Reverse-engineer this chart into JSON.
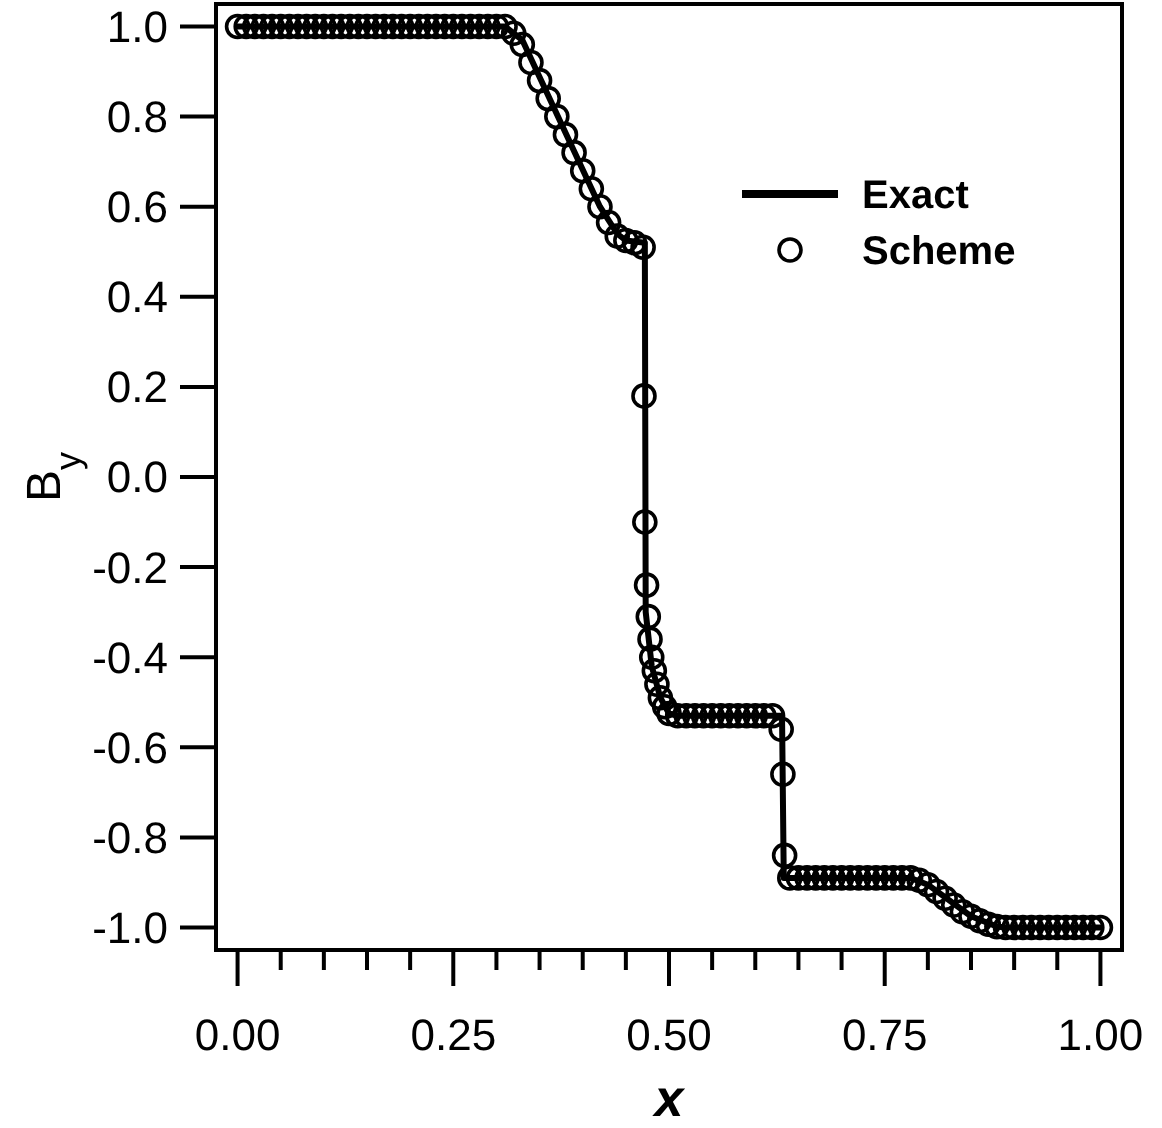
{
  "chart_data": {
    "type": "line",
    "xlabel": "x",
    "ylabel": "B$_{y}$",
    "xlim": [
      -0.025,
      1.025
    ],
    "ylim": [
      -1.05,
      1.05
    ],
    "xticks": [
      {
        "value": 0,
        "label": "0.00"
      },
      {
        "value": 0.05,
        "label": null
      },
      {
        "value": 0.1,
        "label": null
      },
      {
        "value": 0.15,
        "label": null
      },
      {
        "value": 0.2,
        "label": null
      },
      {
        "value": 0.25,
        "label": "0.25"
      },
      {
        "value": 0.3,
        "label": null
      },
      {
        "value": 0.35,
        "label": null
      },
      {
        "value": 0.4,
        "label": null
      },
      {
        "value": 0.45,
        "label": null
      },
      {
        "value": 0.5,
        "label": "0.50"
      },
      {
        "value": 0.55,
        "label": null
      },
      {
        "value": 0.6,
        "label": null
      },
      {
        "value": 0.65,
        "label": null
      },
      {
        "value": 0.7,
        "label": null
      },
      {
        "value": 0.75,
        "label": "0.75"
      },
      {
        "value": 0.8,
        "label": null
      },
      {
        "value": 0.85,
        "label": null
      },
      {
        "value": 0.9,
        "label": null
      },
      {
        "value": 0.95,
        "label": null
      },
      {
        "value": 1,
        "label": "1.00"
      }
    ],
    "yticks": [
      {
        "value": -1,
        "label": "-1.0"
      },
      {
        "value": -0.8,
        "label": "-0.8"
      },
      {
        "value": -0.6,
        "label": "-0.6"
      },
      {
        "value": -0.4,
        "label": "-0.4"
      },
      {
        "value": -0.2,
        "label": "-0.2"
      },
      {
        "value": 0,
        "label": "0.0"
      },
      {
        "value": 0.2,
        "label": "0.2"
      },
      {
        "value": 0.4,
        "label": "0.4"
      },
      {
        "value": 0.6,
        "label": "0.6"
      },
      {
        "value": 0.8,
        "label": "0.8"
      },
      {
        "value": 1,
        "label": "1.0"
      }
    ],
    "legend": "top right",
    "grid": false,
    "series": [
      {
        "name": "Exact",
        "color": "#000000",
        "marker": "none",
        "line_style": "solid",
        "x": [
          0,
          0.31,
          0.33,
          0.42,
          0.44,
          0.45,
          0.472,
          0.473,
          0.48,
          0.49,
          0.5,
          0.51,
          0.631,
          0.633,
          0.78,
          0.8,
          0.85,
          0.88,
          0.89,
          1
        ],
        "values": [
          1,
          1,
          0.97,
          0.6,
          0.54,
          0.525,
          0.52,
          -0.3,
          -0.42,
          -0.49,
          -0.525,
          -0.53,
          -0.53,
          -0.89,
          -0.89,
          -0.905,
          -0.975,
          -0.998,
          -1,
          -1
        ]
      },
      {
        "name": "Scheme",
        "type": "scatter",
        "color": "#000000",
        "marker": "circle",
        "x": [
          0,
          0.01,
          0.02,
          0.03,
          0.04,
          0.05,
          0.06,
          0.07,
          0.08,
          0.09,
          0.1,
          0.11,
          0.12,
          0.13,
          0.14,
          0.15,
          0.16,
          0.17,
          0.18,
          0.19,
          0.2,
          0.21,
          0.22,
          0.23,
          0.24,
          0.25,
          0.26,
          0.27,
          0.28,
          0.29,
          0.3,
          0.31,
          0.32,
          0.33,
          0.34,
          0.35,
          0.36,
          0.37,
          0.38,
          0.39,
          0.4,
          0.41,
          0.42,
          0.43,
          0.44,
          0.45,
          0.46,
          0.47,
          0.471,
          0.472,
          0.474,
          0.476,
          0.478,
          0.48,
          0.483,
          0.486,
          0.49,
          0.495,
          0.5,
          0.51,
          0.52,
          0.53,
          0.54,
          0.55,
          0.56,
          0.57,
          0.58,
          0.59,
          0.6,
          0.61,
          0.62,
          0.63,
          0.632,
          0.634,
          0.64,
          0.65,
          0.66,
          0.67,
          0.68,
          0.69,
          0.7,
          0.71,
          0.72,
          0.73,
          0.74,
          0.75,
          0.76,
          0.77,
          0.78,
          0.79,
          0.8,
          0.81,
          0.82,
          0.83,
          0.84,
          0.85,
          0.86,
          0.87,
          0.88,
          0.89,
          0.9,
          0.91,
          0.92,
          0.93,
          0.94,
          0.95,
          0.96,
          0.97,
          0.98,
          0.99,
          1
        ],
        "values": [
          1,
          1,
          1,
          1,
          1,
          1,
          1,
          1,
          1,
          1,
          1,
          1,
          1,
          1,
          1,
          1,
          1,
          1,
          1,
          1,
          1,
          1,
          1,
          1,
          1,
          1,
          1,
          1,
          1,
          1,
          1,
          1,
          0.985,
          0.96,
          0.92,
          0.88,
          0.84,
          0.8,
          0.76,
          0.72,
          0.68,
          0.64,
          0.6,
          0.565,
          0.535,
          0.525,
          0.52,
          0.51,
          0.18,
          -0.1,
          -0.24,
          -0.31,
          -0.36,
          -0.4,
          -0.43,
          -0.46,
          -0.49,
          -0.51,
          -0.525,
          -0.53,
          -0.53,
          -0.53,
          -0.53,
          -0.53,
          -0.53,
          -0.53,
          -0.53,
          -0.53,
          -0.53,
          -0.53,
          -0.53,
          -0.56,
          -0.66,
          -0.84,
          -0.89,
          -0.89,
          -0.89,
          -0.89,
          -0.89,
          -0.89,
          -0.89,
          -0.89,
          -0.89,
          -0.89,
          -0.89,
          -0.89,
          -0.89,
          -0.89,
          -0.89,
          -0.895,
          -0.905,
          -0.92,
          -0.935,
          -0.95,
          -0.965,
          -0.975,
          -0.985,
          -0.993,
          -0.998,
          -1,
          -1,
          -1,
          -1,
          -1,
          -1,
          -1,
          -1,
          -1,
          -1,
          -1,
          -1
        ]
      }
    ]
  }
}
